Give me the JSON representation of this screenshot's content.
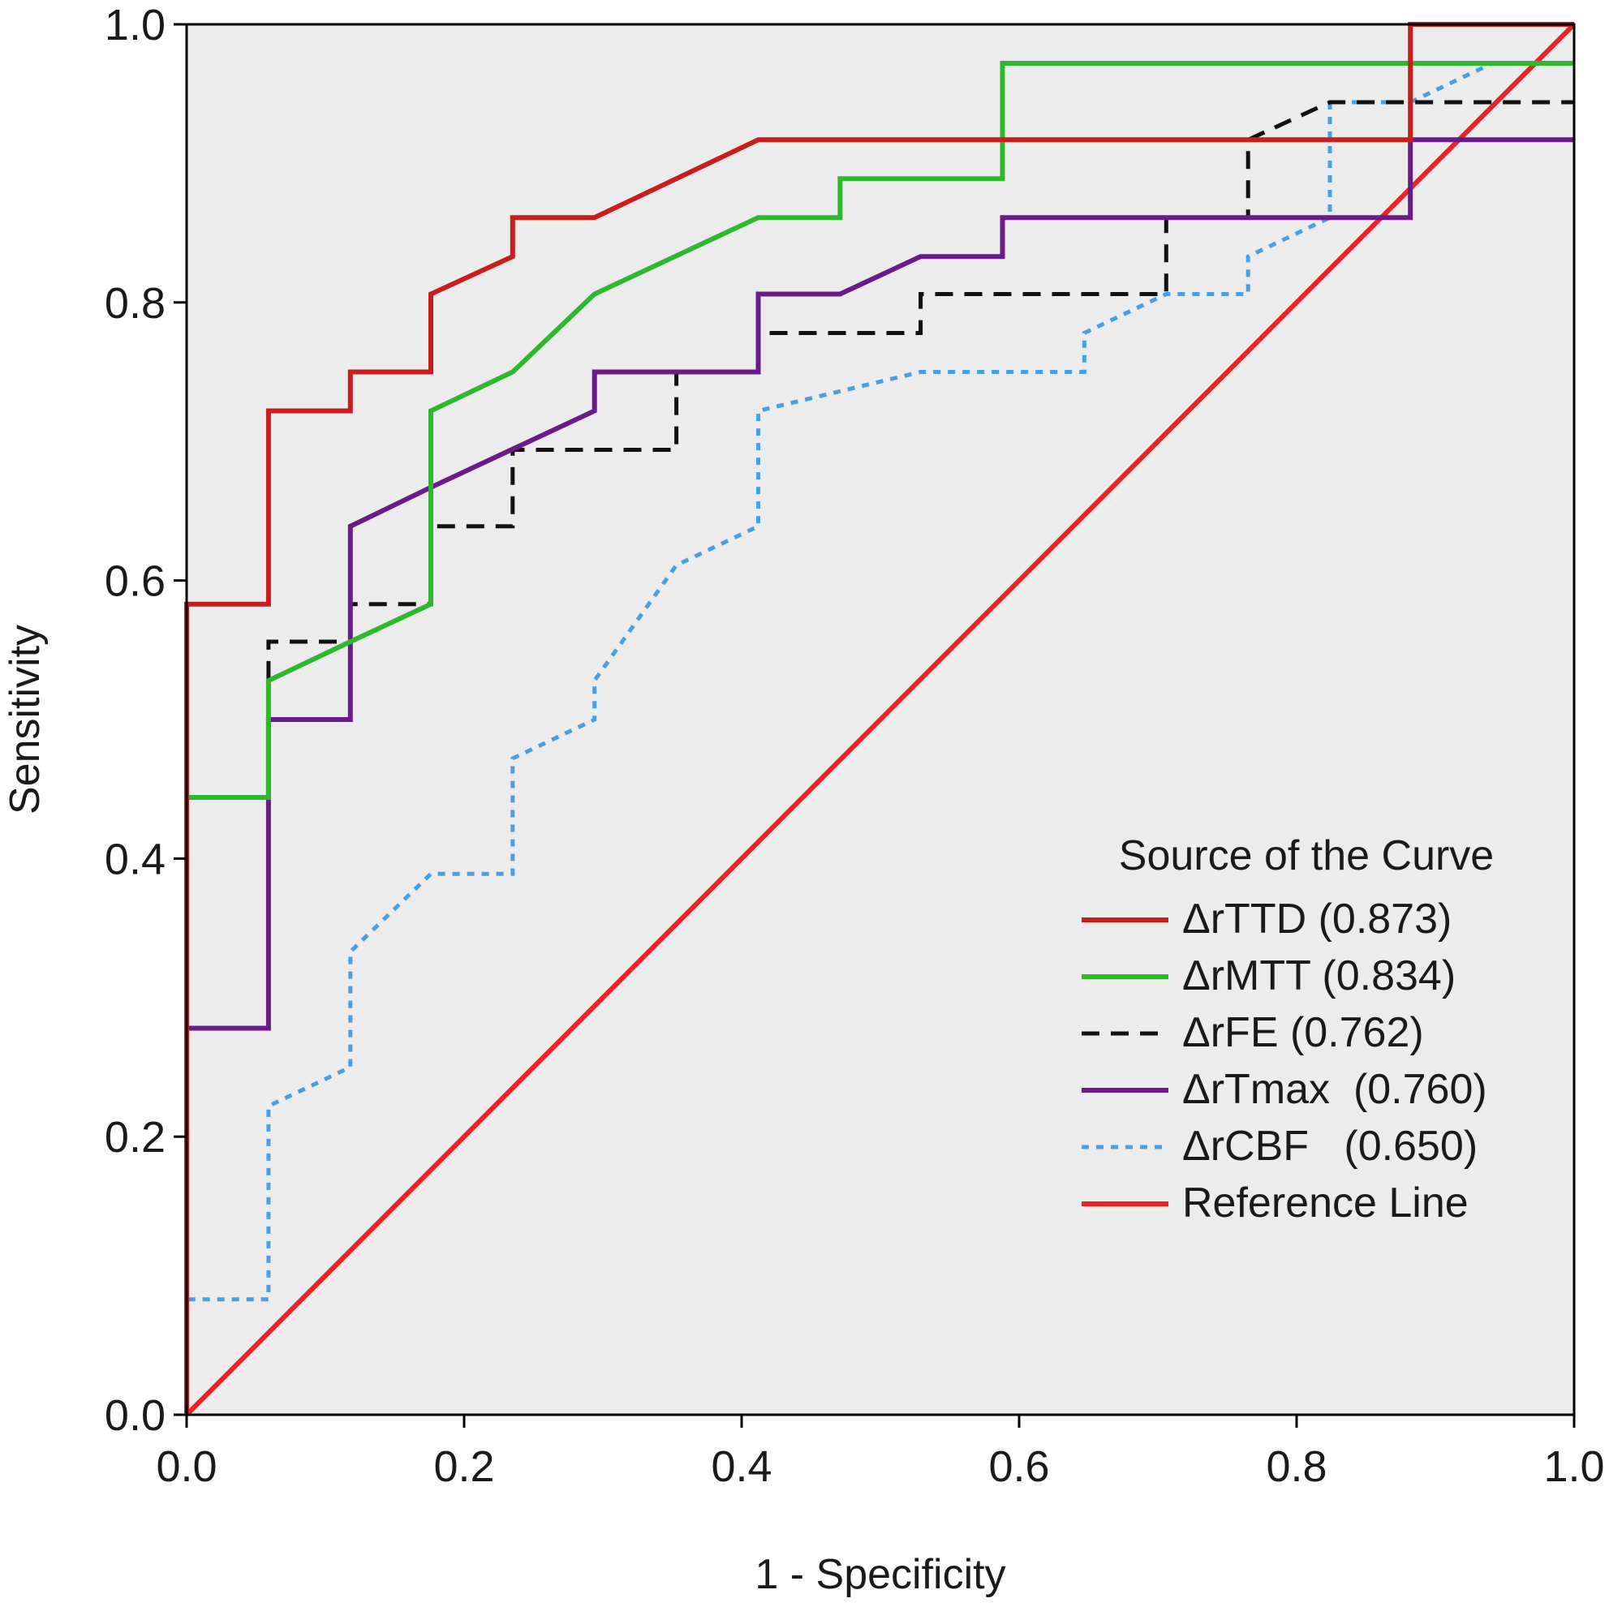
{
  "chart_data": {
    "type": "line",
    "title": "",
    "xlabel": "1 - Specificity",
    "ylabel": "Sensitivity",
    "xlim": [
      0,
      1
    ],
    "ylim": [
      0,
      1
    ],
    "xticks": [
      "0.0",
      "0.2",
      "0.4",
      "0.6",
      "0.8",
      "1.0"
    ],
    "yticks": [
      "0.0",
      "0.2",
      "0.4",
      "0.6",
      "0.8",
      "1.0"
    ],
    "background": "#ececec",
    "legend": {
      "title": "Source of the Curve",
      "placement": "lower-right"
    },
    "series": [
      {
        "name": "ΔrTTD (0.873)",
        "color": "#c81e1e",
        "style": "solid",
        "points": [
          [
            0,
            0
          ],
          [
            0,
            0.583
          ],
          [
            0.059,
            0.583
          ],
          [
            0.059,
            0.722
          ],
          [
            0.118,
            0.722
          ],
          [
            0.118,
            0.75
          ],
          [
            0.176,
            0.75
          ],
          [
            0.176,
            0.806
          ],
          [
            0.235,
            0.833
          ],
          [
            0.235,
            0.861
          ],
          [
            0.294,
            0.861
          ],
          [
            0.412,
            0.917
          ],
          [
            0.882,
            0.917
          ],
          [
            0.882,
            1.0
          ],
          [
            1.0,
            1.0
          ]
        ]
      },
      {
        "name": "ΔrMTT (0.834)",
        "color": "#2eb82e",
        "style": "solid",
        "points": [
          [
            0,
            0
          ],
          [
            0,
            0.444
          ],
          [
            0.059,
            0.444
          ],
          [
            0.059,
            0.528
          ],
          [
            0.118,
            0.556
          ],
          [
            0.176,
            0.583
          ],
          [
            0.176,
            0.722
          ],
          [
            0.235,
            0.75
          ],
          [
            0.294,
            0.806
          ],
          [
            0.412,
            0.861
          ],
          [
            0.471,
            0.861
          ],
          [
            0.471,
            0.889
          ],
          [
            0.588,
            0.889
          ],
          [
            0.588,
            0.972
          ],
          [
            1.0,
            0.972
          ]
        ]
      },
      {
        "name": "ΔrFE (0.762)",
        "color": "#111111",
        "style": "dashed",
        "points": [
          [
            0,
            0
          ],
          [
            0,
            0.444
          ],
          [
            0.059,
            0.444
          ],
          [
            0.059,
            0.556
          ],
          [
            0.118,
            0.556
          ],
          [
            0.118,
            0.583
          ],
          [
            0.176,
            0.583
          ],
          [
            0.176,
            0.639
          ],
          [
            0.235,
            0.639
          ],
          [
            0.235,
            0.694
          ],
          [
            0.353,
            0.694
          ],
          [
            0.353,
            0.75
          ],
          [
            0.412,
            0.75
          ],
          [
            0.412,
            0.778
          ],
          [
            0.529,
            0.778
          ],
          [
            0.529,
            0.806
          ],
          [
            0.706,
            0.806
          ],
          [
            0.706,
            0.861
          ],
          [
            0.765,
            0.861
          ],
          [
            0.765,
            0.917
          ],
          [
            0.824,
            0.944
          ],
          [
            1.0,
            0.944
          ]
        ]
      },
      {
        "name": "ΔrTmax  (0.760)",
        "color": "#6a1b8a",
        "style": "solid",
        "points": [
          [
            0,
            0
          ],
          [
            0,
            0.278
          ],
          [
            0.059,
            0.278
          ],
          [
            0.059,
            0.5
          ],
          [
            0.118,
            0.5
          ],
          [
            0.118,
            0.639
          ],
          [
            0.176,
            0.667
          ],
          [
            0.294,
            0.722
          ],
          [
            0.294,
            0.75
          ],
          [
            0.412,
            0.75
          ],
          [
            0.412,
            0.806
          ],
          [
            0.471,
            0.806
          ],
          [
            0.529,
            0.833
          ],
          [
            0.588,
            0.833
          ],
          [
            0.588,
            0.861
          ],
          [
            0.882,
            0.861
          ],
          [
            0.882,
            0.917
          ],
          [
            1.0,
            0.917
          ]
        ]
      },
      {
        "name": "ΔrCBF   (0.650)",
        "color": "#4a9fe0",
        "style": "dotted",
        "points": [
          [
            0,
            0
          ],
          [
            0,
            0.083
          ],
          [
            0.059,
            0.083
          ],
          [
            0.059,
            0.222
          ],
          [
            0.118,
            0.25
          ],
          [
            0.118,
            0.333
          ],
          [
            0.176,
            0.389
          ],
          [
            0.235,
            0.389
          ],
          [
            0.235,
            0.472
          ],
          [
            0.294,
            0.5
          ],
          [
            0.294,
            0.528
          ],
          [
            0.353,
            0.611
          ],
          [
            0.412,
            0.639
          ],
          [
            0.412,
            0.722
          ],
          [
            0.529,
            0.75
          ],
          [
            0.647,
            0.75
          ],
          [
            0.647,
            0.778
          ],
          [
            0.706,
            0.806
          ],
          [
            0.765,
            0.806
          ],
          [
            0.765,
            0.833
          ],
          [
            0.824,
            0.861
          ],
          [
            0.824,
            0.944
          ],
          [
            0.882,
            0.944
          ],
          [
            0.941,
            0.972
          ],
          [
            1.0,
            0.972
          ]
        ]
      },
      {
        "name": "Reference Line",
        "color": "#ee2222",
        "style": "solid",
        "points": [
          [
            0,
            0
          ],
          [
            1,
            1
          ]
        ]
      }
    ]
  }
}
